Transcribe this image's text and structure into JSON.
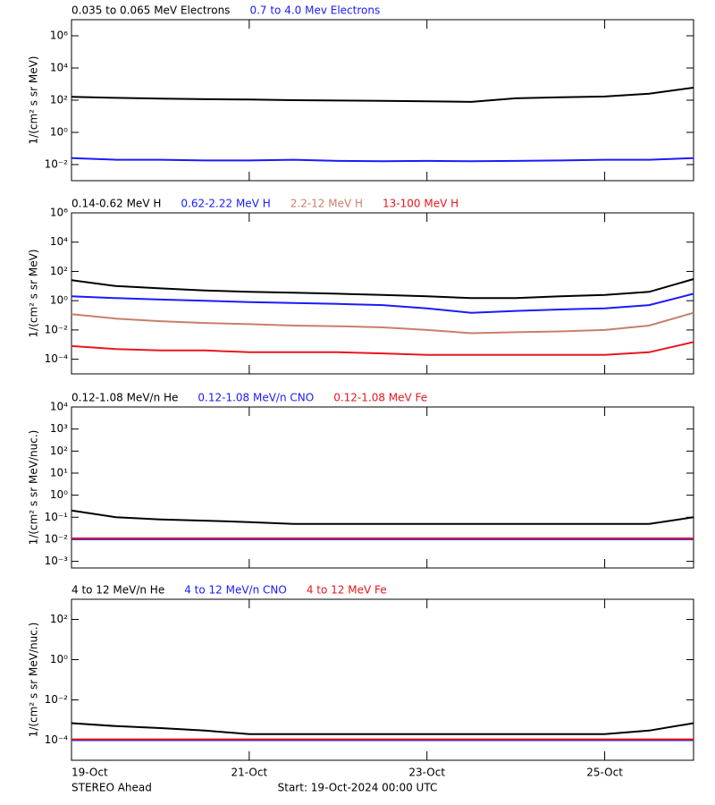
{
  "chart_data": [
    {
      "type": "line",
      "ylog": true,
      "ylabel": "1/(cm² s sr MeV)",
      "x": [
        0,
        0.5,
        1,
        1.5,
        2,
        2.5,
        3,
        3.5,
        4,
        4.5,
        5,
        5.5,
        6,
        6.5,
        7
      ],
      "xlim": [
        0,
        7
      ],
      "xticks": [
        0,
        2,
        4,
        6
      ],
      "ylim": [
        0.001,
        10000000
      ],
      "yticks": [
        {
          "value": 0.01,
          "label": "10⁻²"
        },
        {
          "value": 1,
          "label": "10⁰"
        },
        {
          "value": 100,
          "label": "10²"
        },
        {
          "value": 10000,
          "label": "10⁴"
        },
        {
          "value": 1000000,
          "label": "10⁶"
        }
      ],
      "series": [
        {
          "name": "0.035 to 0.065 MeV Electrons",
          "color": "#000000",
          "values": [
            160,
            140,
            125,
            115,
            110,
            100,
            95,
            90,
            85,
            78,
            130,
            150,
            170,
            250,
            600
          ]
        },
        {
          "name": "0.7 to 4.0 Mev Electrons",
          "color": "#1a1aff",
          "values": [
            0.025,
            0.02,
            0.02,
            0.018,
            0.018,
            0.02,
            0.017,
            0.016,
            0.017,
            0.016,
            0.017,
            0.018,
            0.02,
            0.02,
            0.025
          ]
        }
      ]
    },
    {
      "type": "line",
      "ylog": true,
      "ylabel": "1/(cm² s sr MeV)",
      "x": [
        0,
        0.5,
        1,
        1.5,
        2,
        2.5,
        3,
        3.5,
        4,
        4.5,
        5,
        5.5,
        6,
        6.5,
        7
      ],
      "xlim": [
        0,
        7
      ],
      "xticks": [
        0,
        2,
        4,
        6
      ],
      "ylim": [
        1e-05,
        1000000
      ],
      "yticks": [
        {
          "value": 0.0001,
          "label": "10⁻⁴"
        },
        {
          "value": 0.01,
          "label": "10⁻²"
        },
        {
          "value": 1,
          "label": "10⁰"
        },
        {
          "value": 100,
          "label": "10²"
        },
        {
          "value": 10000,
          "label": "10⁴"
        },
        {
          "value": 1000000,
          "label": "10⁶"
        }
      ],
      "series": [
        {
          "name": "0.14-0.62 MeV H",
          "color": "#000000",
          "values": [
            25,
            10,
            7,
            5,
            4,
            3.5,
            3,
            2.5,
            2,
            1.5,
            1.5,
            2,
            2.5,
            4,
            30
          ]
        },
        {
          "name": "0.62-2.22 MeV H",
          "color": "#1a1aff",
          "values": [
            2,
            1.5,
            1.2,
            1,
            0.8,
            0.7,
            0.6,
            0.5,
            0.3,
            0.15,
            0.2,
            0.25,
            0.3,
            0.5,
            3
          ]
        },
        {
          "name": "2.2-12 MeV H",
          "color": "#c87f6a",
          "values": [
            0.12,
            0.06,
            0.04,
            0.03,
            0.025,
            0.02,
            0.018,
            0.015,
            0.01,
            0.006,
            0.007,
            0.008,
            0.01,
            0.02,
            0.15
          ]
        },
        {
          "name": "13-100 MeV H",
          "color": "#e8161e",
          "values": [
            0.0008,
            0.0005,
            0.0004,
            0.0004,
            0.0003,
            0.0003,
            0.0003,
            0.00025,
            0.0002,
            0.0002,
            0.0002,
            0.0002,
            0.0002,
            0.0003,
            0.0015
          ]
        }
      ]
    },
    {
      "type": "line",
      "ylog": true,
      "ylabel": "1/(cm² s sr MeV/nuc.)",
      "x": [
        0,
        0.5,
        1,
        1.5,
        2,
        2.5,
        3,
        3.5,
        4,
        4.5,
        5,
        5.5,
        6,
        6.5,
        7
      ],
      "xlim": [
        0,
        7
      ],
      "xticks": [
        0,
        2,
        4,
        6
      ],
      "ylim": [
        0.0005,
        10000
      ],
      "yticks": [
        {
          "value": 0.001,
          "label": "10⁻³"
        },
        {
          "value": 0.01,
          "label": "10⁻²"
        },
        {
          "value": 0.1,
          "label": "10⁻¹"
        },
        {
          "value": 1,
          "label": "10⁰"
        },
        {
          "value": 10,
          "label": "10¹"
        },
        {
          "value": 100,
          "label": "10²"
        },
        {
          "value": 1000,
          "label": "10³"
        },
        {
          "value": 10000,
          "label": "10⁴"
        }
      ],
      "series": [
        {
          "name": "0.12-1.08 MeV/n He",
          "color": "#000000",
          "values": [
            0.2,
            0.1,
            0.08,
            0.07,
            0.06,
            0.05,
            0.05,
            0.05,
            0.05,
            0.05,
            0.05,
            0.05,
            0.05,
            0.05,
            0.1
          ]
        },
        {
          "name": "0.12-1.08 MeV/n CNO",
          "color": "#1a1aff",
          "values": [
            0.01,
            0.01,
            0.01,
            0.01,
            0.01,
            0.01,
            0.01,
            0.01,
            0.01,
            0.01,
            0.01,
            0.01,
            0.01,
            0.01,
            0.01
          ]
        },
        {
          "name": "0.12-1.08 MeV Fe",
          "color": "#e8161e",
          "values": [
            0.011,
            0.011,
            0.011,
            0.011,
            0.011,
            0.011,
            0.011,
            0.011,
            0.011,
            0.011,
            0.011,
            0.011,
            0.011,
            0.011,
            0.011
          ]
        }
      ]
    },
    {
      "type": "line",
      "ylog": true,
      "ylabel": "1/(cm² s sr MeV/nuc.)",
      "x": [
        0,
        0.5,
        1,
        1.5,
        2,
        2.5,
        3,
        3.5,
        4,
        4.5,
        5,
        5.5,
        6,
        6.5,
        7
      ],
      "xlim": [
        0,
        7
      ],
      "xticks": [
        {
          "value": 0,
          "label": "19-Oct"
        },
        {
          "value": 2,
          "label": "21-Oct"
        },
        {
          "value": 4,
          "label": "23-Oct"
        },
        {
          "value": 6,
          "label": "25-Oct"
        }
      ],
      "ylim": [
        1e-05,
        1000
      ],
      "yticks": [
        {
          "value": 0.0001,
          "label": "10⁻⁴"
        },
        {
          "value": 0.01,
          "label": "10⁻²"
        },
        {
          "value": 1,
          "label": "10⁰"
        },
        {
          "value": 100,
          "label": "10²"
        }
      ],
      "series": [
        {
          "name": "4 to 12 MeV/n He",
          "color": "#000000",
          "values": [
            0.0007,
            0.0005,
            0.0004,
            0.0003,
            0.0002,
            0.0002,
            0.0002,
            0.0002,
            0.0002,
            0.0002,
            0.0002,
            0.0002,
            0.0002,
            0.0003,
            0.0007
          ]
        },
        {
          "name": "4 to 12 MeV/n CNO",
          "color": "#1a1aff",
          "values": [
            0.0001,
            0.0001,
            0.0001,
            0.0001,
            0.0001,
            0.0001,
            0.0001,
            0.0001,
            0.0001,
            0.0001,
            0.0001,
            0.0001,
            0.0001,
            0.0001,
            0.0001
          ]
        },
        {
          "name": "4 to 12 MeV Fe",
          "color": "#e8161e",
          "values": [
            0.00011,
            0.00011,
            0.00011,
            0.00011,
            0.00011,
            0.00011,
            0.00011,
            0.00011,
            0.00011,
            0.00011,
            0.00011,
            0.00011,
            0.00011,
            0.00011,
            0.00011
          ]
        }
      ]
    }
  ],
  "footer": {
    "left": "STEREO Ahead",
    "center": "Start: 19-Oct-2024 00:00 UTC"
  }
}
